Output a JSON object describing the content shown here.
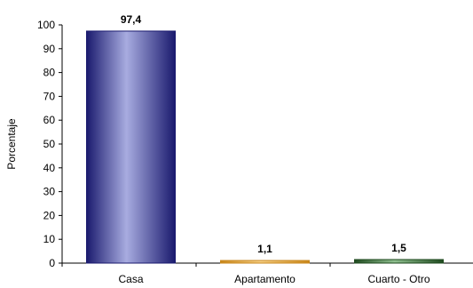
{
  "chart_data": {
    "type": "bar",
    "categories": [
      "Casa",
      "Apartamento",
      "Cuarto - Otro"
    ],
    "values": [
      97.4,
      1.1,
      1.5
    ],
    "data_labels": [
      "97,4",
      "1,1",
      "1,5"
    ],
    "title": "",
    "xlabel": "",
    "ylabel": "Porcentaje",
    "ylim": [
      0,
      100
    ],
    "yticks": [
      0,
      10,
      20,
      30,
      40,
      50,
      60,
      70,
      80,
      90,
      100
    ],
    "grid": false,
    "legend": "none",
    "colors": [
      {
        "edge": "#1a1a6e",
        "light": "#a8ace0",
        "mid": "#5a5fb0"
      },
      {
        "edge": "#c8861a",
        "light": "#f7d28a",
        "mid": "#e6a53c"
      },
      {
        "edge": "#1f4a1f",
        "light": "#8fbf8f",
        "mid": "#3f7a3f"
      }
    ]
  }
}
